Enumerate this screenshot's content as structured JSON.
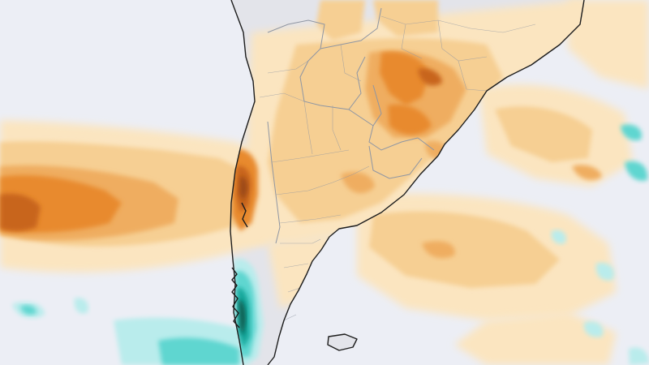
{
  "map": {
    "region": "",
    "palette": {
      "background": "#eceef5",
      "land": "#e3e4ea",
      "coastline": "#1c1c1c",
      "borders": "#8f96a3",
      "anomaly_pale": "#fbe5c0",
      "anomaly_light": "#f6cf93",
      "anomaly_medium": "#efad60",
      "anomaly_strong": "#e88a2d",
      "anomaly_dark": "#c8651c",
      "anomaly_darkest": "#9c4a13",
      "wet_light": "#b9ecec",
      "wet_medium": "#5fd6d0",
      "wet_dark": "#16a89c",
      "wet_darkest": "#0a5b4f"
    },
    "layers": [
      "ocean",
      "land",
      "anomaly-shading",
      "coastline",
      "country-borders",
      "province-borders"
    ]
  }
}
